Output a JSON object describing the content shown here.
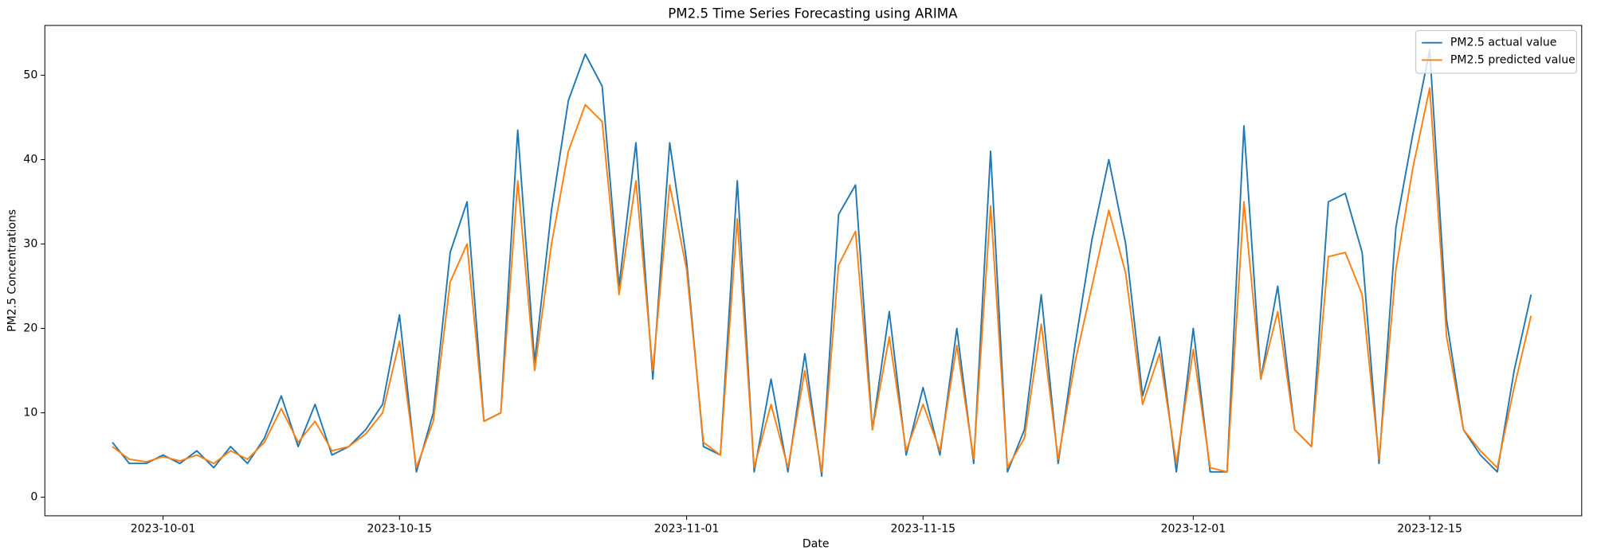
{
  "chart_data": {
    "type": "line",
    "title": "PM2.5 Time Series Forecasting using ARIMA",
    "xlabel": "Date",
    "ylabel": "PM2.5 Concentrations",
    "x": [
      "2023-09-28",
      "2023-09-29",
      "2023-09-30",
      "2023-10-01",
      "2023-10-02",
      "2023-10-03",
      "2023-10-04",
      "2023-10-05",
      "2023-10-06",
      "2023-10-07",
      "2023-10-08",
      "2023-10-09",
      "2023-10-10",
      "2023-10-11",
      "2023-10-12",
      "2023-10-13",
      "2023-10-14",
      "2023-10-15",
      "2023-10-16",
      "2023-10-17",
      "2023-10-18",
      "2023-10-19",
      "2023-10-20",
      "2023-10-21",
      "2023-10-22",
      "2023-10-23",
      "2023-10-24",
      "2023-10-25",
      "2023-10-26",
      "2023-10-27",
      "2023-10-28",
      "2023-10-29",
      "2023-10-30",
      "2023-10-31",
      "2023-11-01",
      "2023-11-02",
      "2023-11-03",
      "2023-11-04",
      "2023-11-05",
      "2023-11-06",
      "2023-11-07",
      "2023-11-08",
      "2023-11-09",
      "2023-11-10",
      "2023-11-11",
      "2023-11-12",
      "2023-11-13",
      "2023-11-14",
      "2023-11-15",
      "2023-11-16",
      "2023-11-17",
      "2023-11-18",
      "2023-11-19",
      "2023-11-20",
      "2023-11-21",
      "2023-11-22",
      "2023-11-23",
      "2023-11-24",
      "2023-11-25",
      "2023-11-26",
      "2023-11-27",
      "2023-11-28",
      "2023-11-29",
      "2023-11-30",
      "2023-12-01",
      "2023-12-02",
      "2023-12-03",
      "2023-12-04",
      "2023-12-05",
      "2023-12-06",
      "2023-12-07",
      "2023-12-08",
      "2023-12-09",
      "2023-12-10",
      "2023-12-11",
      "2023-12-12",
      "2023-12-13",
      "2023-12-14",
      "2023-12-15",
      "2023-12-16",
      "2023-12-17",
      "2023-12-18",
      "2023-12-19",
      "2023-12-20",
      "2023-12-21"
    ],
    "series": [
      {
        "name": "PM2.5 actual value",
        "color": "#1f77b4",
        "values": [
          6.5,
          4,
          4,
          5,
          4,
          5.5,
          3.5,
          6,
          4,
          7,
          12,
          6,
          11,
          5,
          6,
          8,
          11,
          21.6,
          3,
          10,
          29,
          35,
          9,
          10,
          43.5,
          16,
          34,
          47,
          52.5,
          48.7,
          25,
          42,
          14,
          42,
          28,
          6,
          5,
          37.5,
          3,
          14,
          3,
          17,
          2.5,
          33.5,
          37,
          8,
          22,
          5,
          13,
          5,
          20,
          4,
          41,
          3,
          8,
          24,
          4,
          18,
          30.5,
          40,
          30,
          12,
          19,
          3,
          20,
          3,
          3,
          44,
          14,
          25,
          8,
          6,
          35,
          36,
          29,
          4,
          32,
          43,
          53,
          21,
          8,
          5,
          3,
          15,
          24
        ]
      },
      {
        "name": "PM2.5 predicted value",
        "color": "#ff7f0e",
        "values": [
          6,
          4.5,
          4.2,
          4.8,
          4.3,
          5,
          4,
          5.5,
          4.5,
          6.5,
          10.5,
          6.5,
          9,
          5.5,
          6,
          7.5,
          10,
          18.5,
          3.5,
          9,
          25.5,
          30,
          9,
          10,
          37.5,
          15,
          30,
          41,
          46.5,
          44.5,
          24,
          37.5,
          15,
          37,
          27,
          6.5,
          5,
          33,
          3.5,
          11,
          3.5,
          15,
          3,
          27.5,
          31.5,
          8,
          19,
          5.5,
          11,
          5.5,
          18,
          4.5,
          34.5,
          3.5,
          7,
          20.5,
          4.5,
          16,
          25,
          34,
          26.5,
          11,
          17,
          4,
          17.5,
          3.5,
          3,
          35,
          14,
          22,
          8,
          6,
          28.5,
          29,
          24,
          4.5,
          27,
          39,
          48.5,
          19,
          8,
          5.5,
          3.5,
          13,
          21.5
        ]
      }
    ],
    "xlim": [
      "2023-09-24",
      "2023-12-24"
    ],
    "xticks": [
      "2023-10-01",
      "2023-10-15",
      "2023-11-01",
      "2023-11-15",
      "2023-12-01",
      "2023-12-15"
    ],
    "ylim": [
      -2.2,
      55.9
    ],
    "yticks": [
      0,
      10,
      20,
      30,
      40,
      50
    ],
    "legend": "upper right",
    "grid": false
  }
}
